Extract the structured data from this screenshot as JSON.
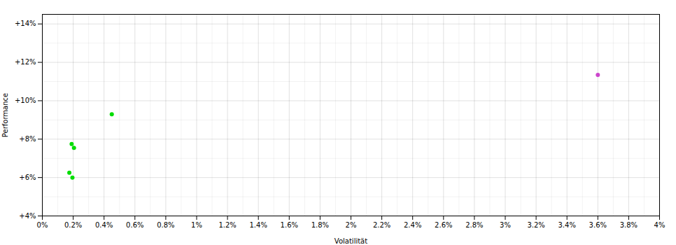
{
  "chart_data": {
    "type": "scatter",
    "xlabel": "Volatilität",
    "ylabel": "Performance",
    "series": [
      {
        "color": "#00dd00",
        "x": [
          0.00175,
          0.00195,
          0.0019,
          0.00205,
          0.0045
        ],
        "values": [
          0.0625,
          0.06,
          0.0775,
          0.0755,
          0.093
        ]
      },
      {
        "color": "#cc44cc",
        "x": [
          0.036
        ],
        "values": [
          0.1135
        ]
      }
    ],
    "xlim": [
      0,
      0.04
    ],
    "ylim": [
      0.04,
      0.145
    ],
    "xticks": [
      {
        "value": 0.0,
        "label": "0%"
      },
      {
        "value": 0.002,
        "label": "0.2%"
      },
      {
        "value": 0.004,
        "label": "0.4%"
      },
      {
        "value": 0.006,
        "label": "0.6%"
      },
      {
        "value": 0.008,
        "label": "0.8%"
      },
      {
        "value": 0.01,
        "label": "1%"
      },
      {
        "value": 0.012,
        "label": "1.2%"
      },
      {
        "value": 0.014,
        "label": "1.4%"
      },
      {
        "value": 0.016,
        "label": "1.6%"
      },
      {
        "value": 0.018,
        "label": "1.8%"
      },
      {
        "value": 0.02,
        "label": "2%"
      },
      {
        "value": 0.022,
        "label": "2.2%"
      },
      {
        "value": 0.024,
        "label": "2.4%"
      },
      {
        "value": 0.026,
        "label": "2.6%"
      },
      {
        "value": 0.028,
        "label": "2.8%"
      },
      {
        "value": 0.03,
        "label": "3%"
      },
      {
        "value": 0.032,
        "label": "3.2%"
      },
      {
        "value": 0.034,
        "label": "3.4%"
      },
      {
        "value": 0.036,
        "label": "3.6%"
      },
      {
        "value": 0.038,
        "label": "3.8%"
      },
      {
        "value": 0.04,
        "label": "4%"
      }
    ],
    "yticks": [
      {
        "value": 0.04,
        "label": "+4%"
      },
      {
        "value": 0.06,
        "label": "+6%"
      },
      {
        "value": 0.08,
        "label": "+8%"
      },
      {
        "value": 0.1,
        "label": "+10%"
      },
      {
        "value": 0.12,
        "label": "+12%"
      },
      {
        "value": 0.14,
        "label": "+14%"
      }
    ],
    "minor_xticks": [
      0.001,
      0.003,
      0.005,
      0.007,
      0.009,
      0.011,
      0.013,
      0.015,
      0.017,
      0.019,
      0.021,
      0.023,
      0.025,
      0.027,
      0.029,
      0.031,
      0.033,
      0.035,
      0.037,
      0.039
    ],
    "minor_yticks": [
      0.05,
      0.07,
      0.09,
      0.11,
      0.13
    ],
    "grid": true
  }
}
